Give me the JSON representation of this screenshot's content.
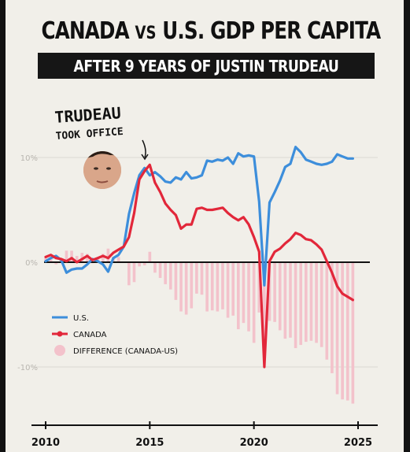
{
  "header": {
    "title_main": "CANADA ",
    "title_vs": "VS",
    "title_rest": " U.S. GDP PER CAPITA",
    "subtitle": "AFTER 9 YEARS OF JUSTIN TRUDEAU"
  },
  "annotation": {
    "line1": "TRUDEAU",
    "line2": "TOOK OFFICE"
  },
  "colors": {
    "us": "#3d8edb",
    "canada": "#e2273a",
    "difference": "#f3c2cb",
    "background": "#f1efe9",
    "frame": "#121212"
  },
  "chart_data": {
    "type": "line",
    "ylim": [
      -14,
      12
    ],
    "xlim": [
      2010,
      2025
    ],
    "x_ticks": [
      "2010",
      "2015",
      "2020",
      "2025"
    ],
    "y_ticks": [
      "10%",
      "0%",
      "-10%"
    ],
    "y_tick_values": [
      10,
      0,
      -10
    ],
    "legend_position": "lower-left",
    "legend": {
      "us": "U.S.",
      "canada": "CANADA",
      "difference": "DIFFERENCE (CANADA-US)"
    },
    "x": [
      2010.0,
      2010.25,
      2010.5,
      2010.75,
      2011.0,
      2011.25,
      2011.5,
      2011.75,
      2012.0,
      2012.25,
      2012.5,
      2012.75,
      2013.0,
      2013.25,
      2013.5,
      2013.75,
      2014.0,
      2014.25,
      2014.5,
      2014.75,
      2015.0,
      2015.25,
      2015.5,
      2015.75,
      2016.0,
      2016.25,
      2016.5,
      2016.75,
      2017.0,
      2017.25,
      2017.5,
      2017.75,
      2018.0,
      2018.25,
      2018.5,
      2018.75,
      2019.0,
      2019.25,
      2019.5,
      2019.75,
      2020.0,
      2020.25,
      2020.5,
      2020.75,
      2021.0,
      2021.25,
      2021.5,
      2021.75,
      2022.0,
      2022.25,
      2022.5,
      2022.75,
      2023.0,
      2023.25,
      2023.5,
      2023.75,
      2024.0,
      2024.25,
      2024.5,
      2024.75
    ],
    "series": [
      {
        "name": "U.S.",
        "key": "us",
        "values": [
          0.1,
          0.4,
          0.6,
          0.2,
          -1.0,
          -0.7,
          -0.6,
          -0.6,
          -0.2,
          0.3,
          0.1,
          -0.2,
          -0.9,
          0.4,
          0.7,
          1.5,
          4.6,
          6.6,
          8.3,
          9.0,
          8.3,
          8.6,
          8.2,
          7.7,
          7.6,
          8.1,
          7.9,
          8.6,
          8.0,
          8.1,
          8.3,
          9.7,
          9.6,
          9.8,
          9.7,
          10.0,
          9.4,
          10.4,
          10.1,
          10.2,
          10.1,
          5.8,
          -2.2,
          5.7,
          6.7,
          7.8,
          9.1,
          9.4,
          11.0,
          10.5,
          9.8,
          9.6,
          9.4,
          9.3,
          9.4,
          9.6,
          10.3,
          10.1,
          9.9,
          9.9
        ]
      },
      {
        "name": "CANADA",
        "key": "canada",
        "values": [
          0.5,
          0.7,
          0.4,
          0.3,
          0.1,
          0.4,
          0.0,
          0.3,
          0.6,
          0.2,
          0.4,
          0.6,
          0.4,
          0.9,
          1.2,
          1.5,
          2.4,
          4.7,
          7.9,
          8.7,
          9.3,
          7.6,
          6.7,
          5.6,
          5.0,
          4.5,
          3.2,
          3.6,
          3.6,
          5.1,
          5.2,
          5.0,
          5.0,
          5.1,
          5.2,
          4.7,
          4.3,
          4.0,
          4.3,
          3.6,
          2.4,
          1.0,
          -10.0,
          0.1,
          1.0,
          1.3,
          1.8,
          2.2,
          2.8,
          2.6,
          2.2,
          2.1,
          1.7,
          1.2,
          0.1,
          -1.0,
          -2.3,
          -3.0,
          -3.3,
          -3.6
        ]
      },
      {
        "name": "DIFFERENCE (CANADA-US)",
        "key": "difference",
        "values": [
          0.4,
          0.3,
          -0.2,
          0.1,
          1.1,
          1.1,
          0.6,
          0.9,
          0.8,
          -0.1,
          0.3,
          0.8,
          1.3,
          0.5,
          0.5,
          0.0,
          -2.2,
          -1.9,
          -0.4,
          -0.3,
          1.0,
          -1.0,
          -1.5,
          -2.1,
          -2.6,
          -3.6,
          -4.7,
          -5.0,
          -4.4,
          -3.0,
          -3.1,
          -4.7,
          -4.6,
          -4.7,
          -4.5,
          -5.3,
          -5.1,
          -6.4,
          -5.8,
          -6.6,
          -7.7,
          -4.8,
          -7.8,
          -5.6,
          -5.7,
          -6.5,
          -7.3,
          -7.2,
          -8.2,
          -7.9,
          -7.6,
          -7.5,
          -7.7,
          -8.1,
          -9.3,
          -10.6,
          -12.6,
          -13.1,
          -13.2,
          -13.5
        ]
      }
    ]
  }
}
